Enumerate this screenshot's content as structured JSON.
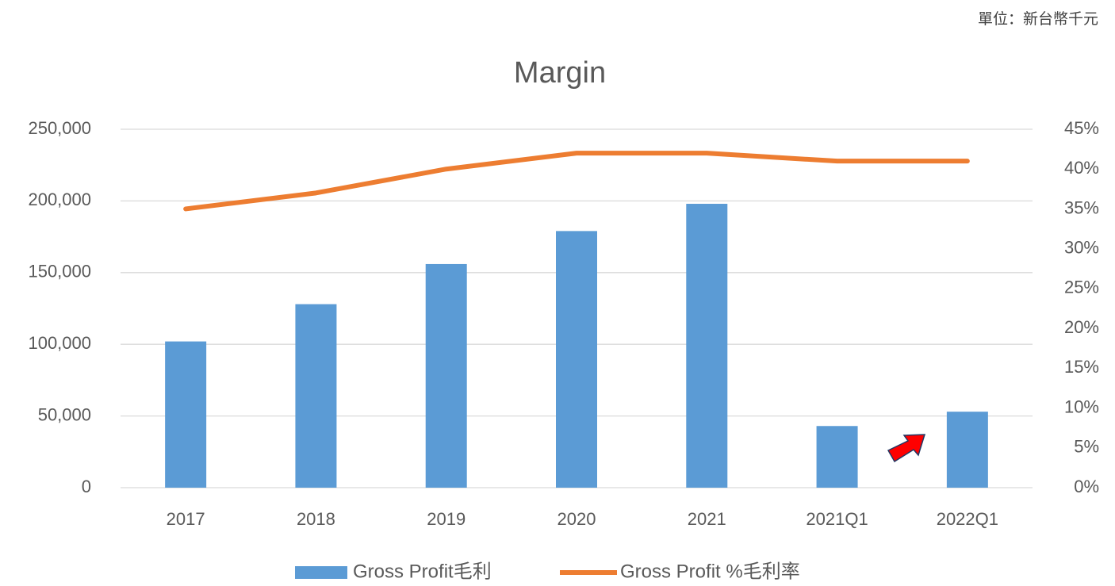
{
  "note": "單位：新台幣千元",
  "chart_data": {
    "type": "bar",
    "title": "Margin",
    "categories": [
      "2017",
      "2018",
      "2019",
      "2020",
      "2021",
      "2021Q1",
      "2022Q1"
    ],
    "series": [
      {
        "name": "Gross Profit毛利",
        "type": "bar",
        "color": "#5b9bd5",
        "values": [
          102000,
          128000,
          156000,
          179000,
          198000,
          43000,
          53000
        ]
      },
      {
        "name": "Gross Profit %毛利率",
        "type": "line",
        "axis": "y2",
        "color": "#ed7d31",
        "values": [
          35,
          37,
          40,
          42,
          42,
          41,
          41
        ]
      }
    ],
    "ylim": [
      0,
      250000
    ],
    "yticks": [
      0,
      {
        "value": 50000,
        "label": "50,000"
      },
      {
        "value": 100000,
        "label": "100,000"
      },
      {
        "value": 150000,
        "label": "150,000"
      },
      {
        "value": 200000,
        "label": "200,000"
      },
      {
        "value": 250000,
        "label": "250,000"
      }
    ],
    "y2lim": [
      0,
      45
    ],
    "y2ticks": [
      {
        "value": 0,
        "label": "0%"
      },
      {
        "value": 5,
        "label": "5%"
      },
      {
        "value": 10,
        "label": "10%"
      },
      {
        "value": 15,
        "label": "15%"
      },
      {
        "value": 20,
        "label": "20%"
      },
      {
        "value": 25,
        "label": "25%"
      },
      {
        "value": 30,
        "label": "30%"
      },
      {
        "value": 35,
        "label": "35%"
      },
      {
        "value": 40,
        "label": "40%"
      },
      {
        "value": 45,
        "label": "45%"
      }
    ],
    "grid": true,
    "legend": "bottom"
  }
}
